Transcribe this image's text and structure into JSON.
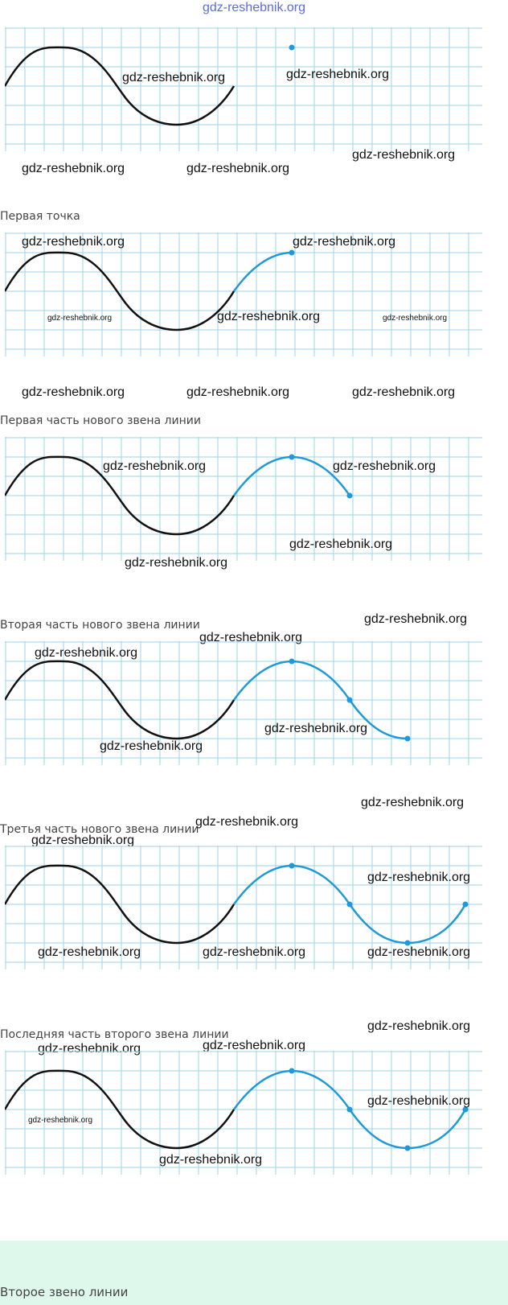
{
  "header_watermark": "gdz-reshebnik.org",
  "captions": [
    "Первая точка",
    "Первая часть нового звена линии",
    "Вторая часть нового звена линии",
    "Третья часть нового звена линии",
    "Последняя часть второго звена линии",
    "Второе звено линии"
  ],
  "watermarks": [
    "gdz-reshebnik.org",
    "gdz-reshebnik.org",
    "gdz-reshebnik.org",
    "gdz-reshebnik.org",
    "gdz-reshebnik.org",
    "gdz-reshebnik.org",
    "gdz-reshebnik.org",
    "gdz-reshebnik.org",
    "gdz-reshebnik.org",
    "gdz-reshebnik.org",
    "gdz-reshebnik.org",
    "gdz-reshebnik.org",
    "gdz-reshebnik.org",
    "gdz-reshebnik.org",
    "gdz-reshebnik.org",
    "gdz-reshebnik.org",
    "gdz-reshebnik.org",
    "gdz-reshebnik.org",
    "gdz-reshebnik.org",
    "gdz-reshebnik.org",
    "gdz-reshebnik.org",
    "gdz-reshebnik.org",
    "gdz-reshebnik.org",
    "gdz-reshebnik.org",
    "gdz-reshebnik.org",
    "gdz-reshebnik.org",
    "gdz-reshebnik.org",
    "gdz-reshebnik.org",
    "gdz-reshebnik.org",
    "gdz-reshebnik.org",
    "gdz-reshebnik.org",
    "gdz-reshebnik.org",
    "gdz-reshebnik.org",
    "gdz-reshebnik.org",
    "gdz-reshebnik.org"
  ],
  "colors": {
    "grid": "#9fd3ea",
    "black_curve": "#111111",
    "blue_curve": "#1f9ad6",
    "footer_band": "#dff8ec"
  }
}
